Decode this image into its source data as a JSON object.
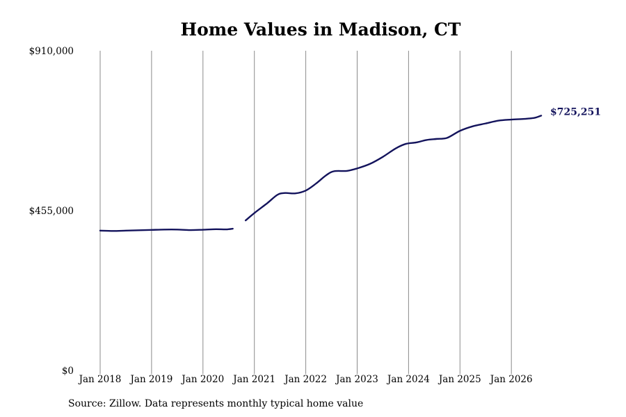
{
  "chart_data": {
    "type": "line",
    "title": "Home Values in Madison, CT",
    "xlabel": "",
    "ylabel": "",
    "ylim": [
      0,
      910000
    ],
    "y_ticks": [
      {
        "value": 0,
        "label": "$0"
      },
      {
        "value": 455000,
        "label": "$455,000"
      },
      {
        "value": 910000,
        "label": "$910,000"
      }
    ],
    "x_ticks": [
      {
        "value": 2018.0,
        "label": "Jan 2018"
      },
      {
        "value": 2019.0,
        "label": "Jan 2019"
      },
      {
        "value": 2020.0,
        "label": "Jan 2020"
      },
      {
        "value": 2021.0,
        "label": "Jan 2021"
      },
      {
        "value": 2022.0,
        "label": "Jan 2022"
      },
      {
        "value": 2023.0,
        "label": "Jan 2023"
      },
      {
        "value": 2024.0,
        "label": "Jan 2024"
      },
      {
        "value": 2025.0,
        "label": "Jan 2025"
      },
      {
        "value": 2026.0,
        "label": "Jan 2026"
      }
    ],
    "grid": {
      "vertical": true,
      "horizontal": false
    },
    "line_color": "#13135c",
    "series": [
      {
        "segments": [
          [
            {
              "x": 2018.0,
              "y": 398000
            },
            {
              "x": 2018.25,
              "y": 397000
            },
            {
              "x": 2018.5,
              "y": 398000
            },
            {
              "x": 2018.75,
              "y": 399000
            },
            {
              "x": 2019.0,
              "y": 400000
            },
            {
              "x": 2019.25,
              "y": 401000
            },
            {
              "x": 2019.5,
              "y": 401000
            },
            {
              "x": 2019.75,
              "y": 399500
            },
            {
              "x": 2020.0,
              "y": 400500
            },
            {
              "x": 2020.25,
              "y": 402000
            },
            {
              "x": 2020.45,
              "y": 401500
            },
            {
              "x": 2020.58,
              "y": 403500
            }
          ],
          [
            {
              "x": 2020.83,
              "y": 427000
            },
            {
              "x": 2021.0,
              "y": 448000
            },
            {
              "x": 2021.25,
              "y": 476000
            },
            {
              "x": 2021.45,
              "y": 500000
            },
            {
              "x": 2021.6,
              "y": 505000
            },
            {
              "x": 2021.8,
              "y": 504000
            },
            {
              "x": 2022.0,
              "y": 512000
            },
            {
              "x": 2022.2,
              "y": 532000
            },
            {
              "x": 2022.4,
              "y": 556000
            },
            {
              "x": 2022.55,
              "y": 567000
            },
            {
              "x": 2022.8,
              "y": 568000
            },
            {
              "x": 2023.0,
              "y": 575000
            },
            {
              "x": 2023.25,
              "y": 588000
            },
            {
              "x": 2023.5,
              "y": 608000
            },
            {
              "x": 2023.75,
              "y": 632000
            },
            {
              "x": 2023.95,
              "y": 645000
            },
            {
              "x": 2024.15,
              "y": 649000
            },
            {
              "x": 2024.35,
              "y": 656000
            },
            {
              "x": 2024.55,
              "y": 659000
            },
            {
              "x": 2024.75,
              "y": 662000
            },
            {
              "x": 2025.0,
              "y": 682000
            },
            {
              "x": 2025.25,
              "y": 695000
            },
            {
              "x": 2025.5,
              "y": 703000
            },
            {
              "x": 2025.75,
              "y": 711000
            },
            {
              "x": 2026.0,
              "y": 714000
            },
            {
              "x": 2026.25,
              "y": 716000
            },
            {
              "x": 2026.45,
              "y": 719000
            },
            {
              "x": 2026.58,
              "y": 725251
            }
          ]
        ]
      }
    ],
    "end_label": "$725,251"
  },
  "source": "Source: Zillow. Data represents monthly typical home value"
}
